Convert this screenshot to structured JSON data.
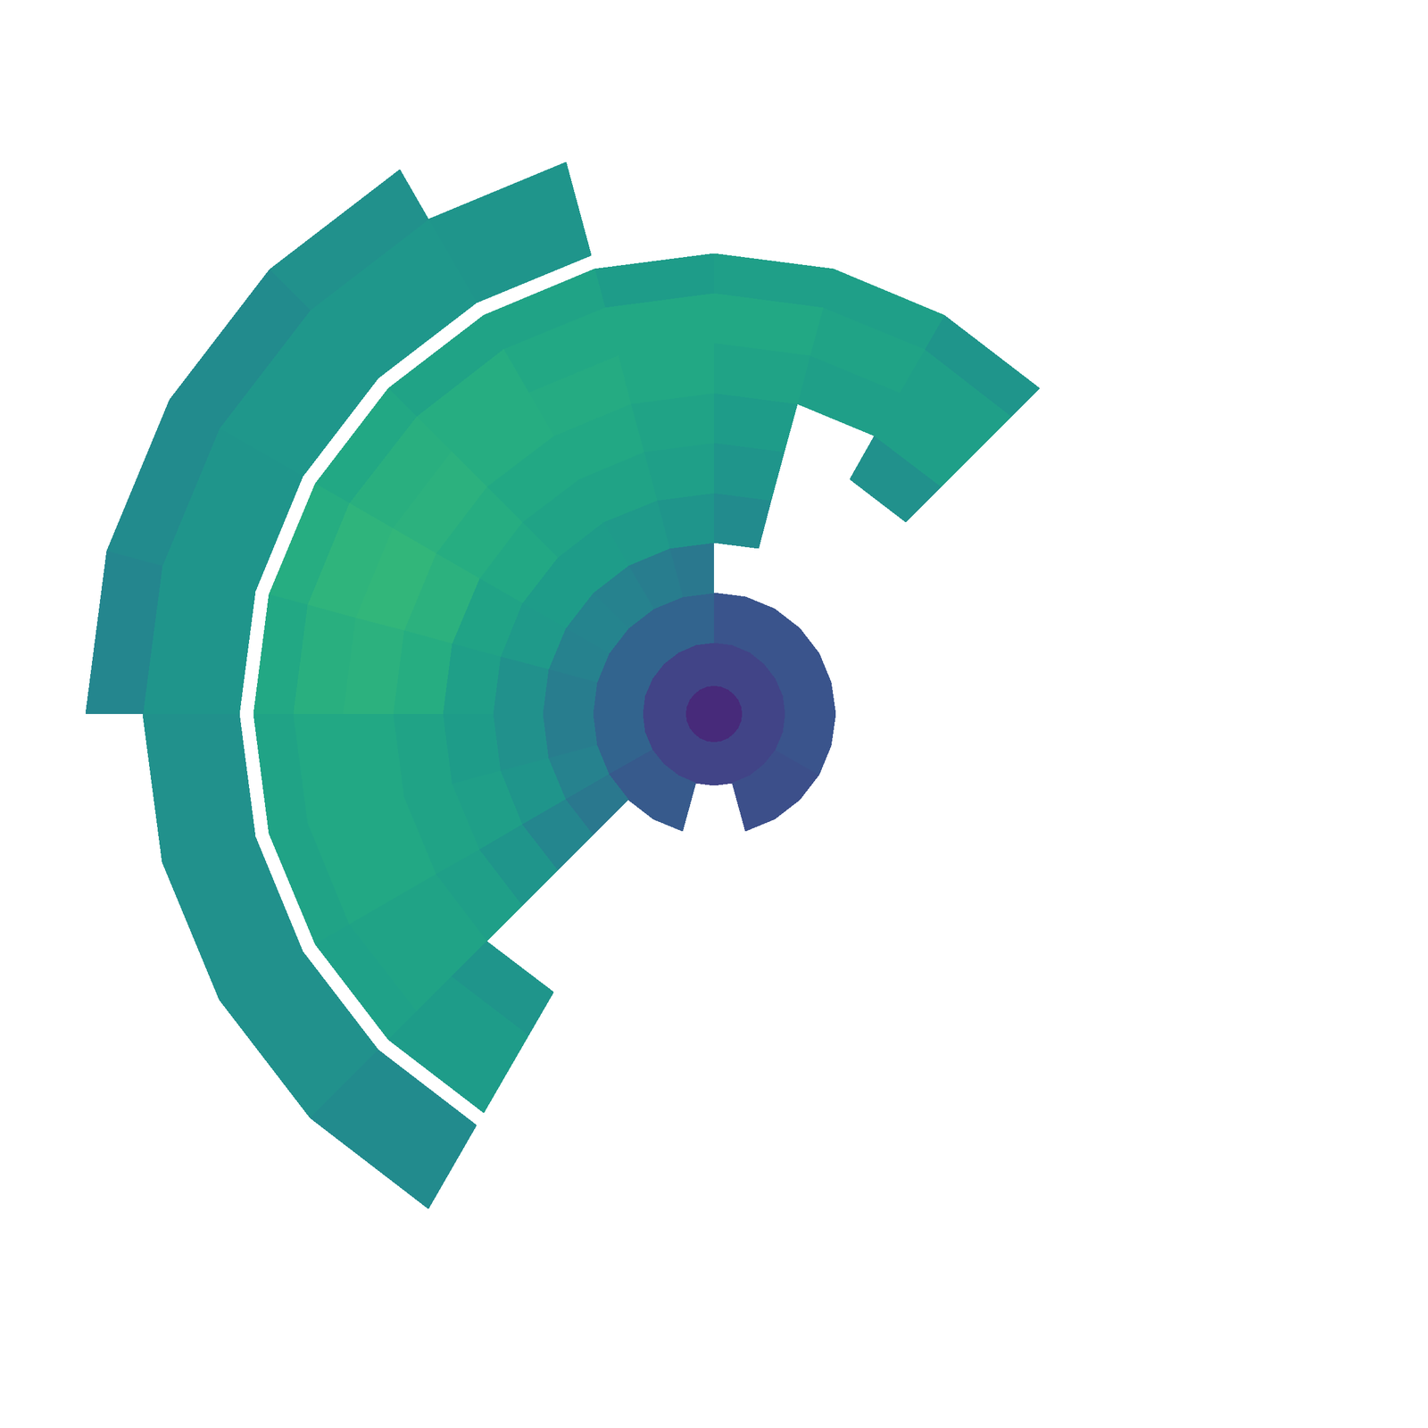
{
  "chart_data": {
    "type": "polar_heatmap",
    "tick_labels": false,
    "rlim": [
      0,
      1
    ],
    "value_range": [
      0,
      100
    ],
    "azimuth_edges": [
      0,
      15,
      30,
      45,
      60,
      75,
      90,
      105,
      120,
      135,
      150,
      165,
      180,
      195,
      210,
      225,
      240,
      255,
      270,
      285,
      300,
      315,
      330,
      345,
      360
    ],
    "range_edges": [
      0,
      0.04,
      0.1,
      0.17,
      0.24,
      0.31,
      0.38,
      0.45,
      0.52,
      0.59,
      0.645,
      0.665,
      0.8,
      0.88
    ],
    "cells": [
      [
        12,
        12,
        12,
        12,
        12,
        12,
        12,
        12,
        12,
        12,
        12,
        12,
        12,
        12,
        12,
        12,
        12,
        12,
        12,
        12,
        12,
        12,
        12,
        12
      ],
      [
        20,
        20,
        20,
        20,
        20,
        20,
        20,
        20,
        20,
        20,
        20,
        20,
        20,
        20,
        20,
        20,
        20,
        20,
        20,
        20,
        20,
        20,
        20,
        20
      ],
      [
        26,
        26,
        26,
        26,
        26,
        26,
        32,
        32,
        32,
        32,
        32,
        32,
        32,
        32,
        28,
        28,
        28,
        null,
        null,
        24,
        24,
        24,
        26,
        26
      ],
      [
        null,
        null,
        null,
        null,
        null,
        null,
        40,
        42,
        44,
        45,
        44,
        42,
        42,
        44,
        40,
        null,
        null,
        null,
        null,
        null,
        null,
        null,
        null,
        null
      ],
      [
        null,
        null,
        null,
        null,
        null,
        48,
        52,
        54,
        55,
        55,
        54,
        50,
        50,
        52,
        46,
        null,
        null,
        null,
        null,
        null,
        null,
        null,
        null,
        null
      ],
      [
        null,
        null,
        null,
        null,
        null,
        52,
        56,
        58,
        58,
        60,
        58,
        56,
        55,
        56,
        52,
        null,
        null,
        null,
        null,
        null,
        null,
        null,
        null,
        null
      ],
      [
        null,
        null,
        null,
        50,
        null,
        55,
        58,
        60,
        60,
        62,
        64,
        62,
        58,
        58,
        56,
        null,
        null,
        null,
        null,
        null,
        null,
        null,
        null,
        null
      ],
      [
        null,
        null,
        null,
        56,
        56,
        58,
        60,
        61,
        62,
        64,
        66,
        64,
        60,
        60,
        58,
        52,
        null,
        null,
        null,
        null,
        null,
        null,
        null,
        null
      ],
      [
        null,
        null,
        null,
        56,
        58,
        60,
        60,
        60,
        62,
        63,
        65,
        63,
        60,
        60,
        58,
        55,
        null,
        null,
        null,
        null,
        null,
        null,
        null,
        null
      ],
      [
        null,
        null,
        null,
        52,
        56,
        56,
        55,
        58,
        58,
        60,
        62,
        60,
        58,
        58,
        57,
        55,
        null,
        null,
        null,
        null,
        null,
        null,
        null,
        null
      ],
      [
        null,
        null,
        null,
        null,
        null,
        null,
        null,
        null,
        null,
        null,
        null,
        null,
        null,
        null,
        null,
        null,
        null,
        null,
        null,
        null,
        null,
        null,
        null,
        null
      ],
      [
        null,
        null,
        null,
        null,
        null,
        null,
        null,
        52,
        53,
        53,
        52,
        52,
        50,
        50,
        50,
        48,
        null,
        null,
        null,
        null,
        null,
        null,
        null,
        null
      ],
      [
        null,
        null,
        null,
        null,
        null,
        null,
        null,
        null,
        50,
        48,
        48,
        46,
        null,
        null,
        null,
        null,
        null,
        null,
        null,
        null,
        null,
        null,
        null,
        null
      ]
    ]
  }
}
